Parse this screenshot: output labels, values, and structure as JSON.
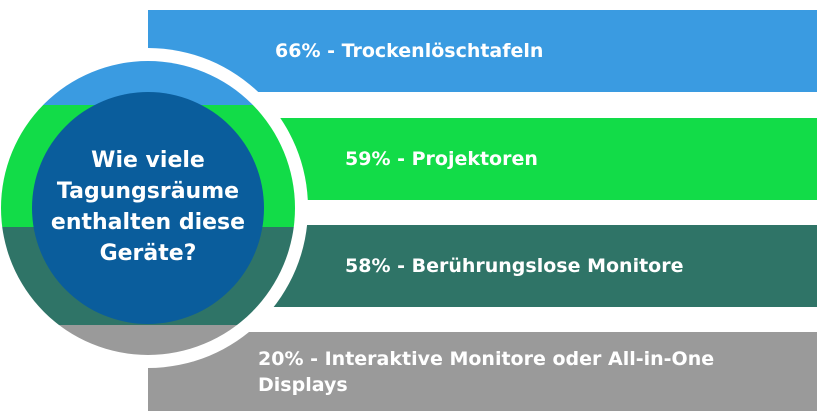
{
  "title": "Wie viele Tagungsräume enthalten diese Geräte?",
  "items": [
    {
      "label": "66% - Trockenlöschtafeln",
      "color": "#3a9be1"
    },
    {
      "label": "59% - Projektoren",
      "color": "#12dc48"
    },
    {
      "label": "58% - Berührungslose Monitore",
      "color": "#2f7467"
    },
    {
      "label": "20% - Interaktive Monitore oder All-in-One Displays",
      "color": "#9a9a9a"
    }
  ]
}
